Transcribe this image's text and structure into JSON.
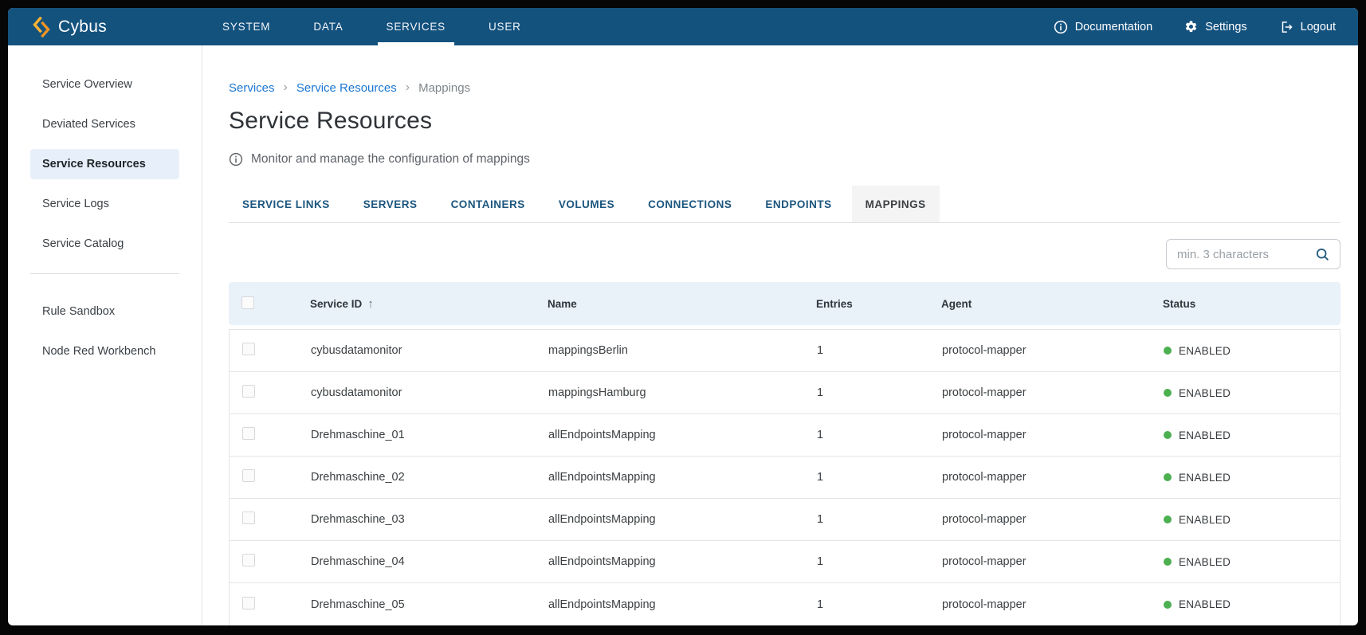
{
  "brand": {
    "name": "Cybus"
  },
  "topnav": {
    "items": [
      {
        "label": "SYSTEM",
        "active": false
      },
      {
        "label": "DATA",
        "active": false
      },
      {
        "label": "SERVICES",
        "active": true
      },
      {
        "label": "USER",
        "active": false
      }
    ]
  },
  "actions": {
    "documentation": "Documentation",
    "settings": "Settings",
    "logout": "Logout"
  },
  "sidebar": {
    "items": [
      {
        "label": "Service Overview",
        "active": false
      },
      {
        "label": "Deviated Services",
        "active": false
      },
      {
        "label": "Service Resources",
        "active": true
      },
      {
        "label": "Service Logs",
        "active": false
      },
      {
        "label": "Service Catalog",
        "active": false
      }
    ],
    "secondary_items": [
      {
        "label": "Rule Sandbox",
        "active": false
      },
      {
        "label": "Node Red Workbench",
        "active": false
      }
    ]
  },
  "breadcrumb": {
    "separator": "›",
    "items": [
      {
        "label": "Services",
        "type": "link"
      },
      {
        "label": "Service Resources",
        "type": "link"
      },
      {
        "label": "Mappings",
        "type": "current"
      }
    ]
  },
  "page": {
    "title": "Service Resources",
    "description": "Monitor and manage the configuration of mappings"
  },
  "tabs": [
    {
      "label": "SERVICE LINKS",
      "active": false
    },
    {
      "label": "SERVERS",
      "active": false
    },
    {
      "label": "CONTAINERS",
      "active": false
    },
    {
      "label": "VOLUMES",
      "active": false
    },
    {
      "label": "CONNECTIONS",
      "active": false
    },
    {
      "label": "ENDPOINTS",
      "active": false
    },
    {
      "label": "MAPPINGS",
      "active": true
    }
  ],
  "search": {
    "placeholder": "min. 3 characters"
  },
  "table": {
    "sort": {
      "column": "Service ID",
      "direction": "ascending",
      "arrow": "↑"
    },
    "columns": [
      {
        "key": "service_id",
        "label": "Service ID",
        "sorted": true
      },
      {
        "key": "name",
        "label": "Name",
        "sorted": false
      },
      {
        "key": "entries",
        "label": "Entries",
        "sorted": false
      },
      {
        "key": "agent",
        "label": "Agent",
        "sorted": false
      },
      {
        "key": "status",
        "label": "Status",
        "sorted": false
      }
    ],
    "rows": [
      {
        "service_id": "cybusdatamonitor",
        "name": "mappingsBerlin",
        "entries": "1",
        "agent": "protocol-mapper",
        "status": "ENABLED"
      },
      {
        "service_id": "cybusdatamonitor",
        "name": "mappingsHamburg",
        "entries": "1",
        "agent": "protocol-mapper",
        "status": "ENABLED"
      },
      {
        "service_id": "Drehmaschine_01",
        "name": "allEndpointsMapping",
        "entries": "1",
        "agent": "protocol-mapper",
        "status": "ENABLED"
      },
      {
        "service_id": "Drehmaschine_02",
        "name": "allEndpointsMapping",
        "entries": "1",
        "agent": "protocol-mapper",
        "status": "ENABLED"
      },
      {
        "service_id": "Drehmaschine_03",
        "name": "allEndpointsMapping",
        "entries": "1",
        "agent": "protocol-mapper",
        "status": "ENABLED"
      },
      {
        "service_id": "Drehmaschine_04",
        "name": "allEndpointsMapping",
        "entries": "1",
        "agent": "protocol-mapper",
        "status": "ENABLED"
      },
      {
        "service_id": "Drehmaschine_05",
        "name": "allEndpointsMapping",
        "entries": "1",
        "agent": "protocol-mapper",
        "status": "ENABLED"
      }
    ]
  },
  "colors": {
    "topbar_blue": "#14527E",
    "brand_orange": "#F5A623",
    "link_blue": "#1B76D2",
    "status_enabled_green": "#4CAF50",
    "active_tab_bg": "#F4F4F4",
    "table_header_bg": "#E9F1F9",
    "sidebar_active_bg": "#E7F0FA"
  }
}
